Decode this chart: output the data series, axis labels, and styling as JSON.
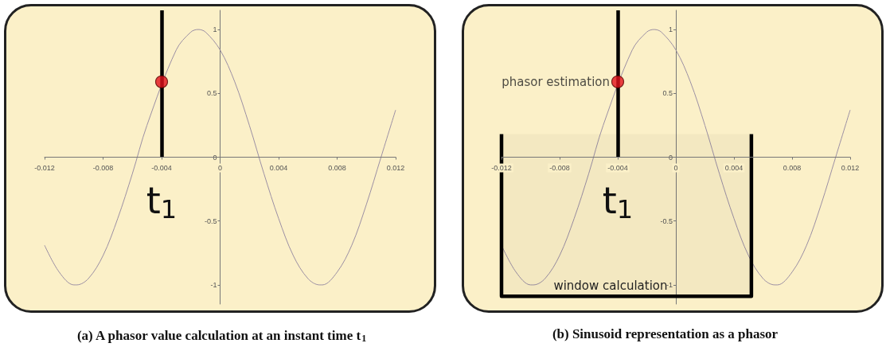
{
  "chart_data": [
    {
      "type": "line",
      "title": "(a) A phasor value calculation at an instant time t$_{1}$",
      "series": [
        {
          "color": "#9b8fa3",
          "x": [
            -0.012,
            -0.011,
            -0.01,
            -0.0098,
            -0.009,
            -0.008,
            -0.007,
            -0.006,
            -0.005,
            -0.003,
            -0.002,
            -0.0015,
            -0.001,
            0,
            0.001,
            0.002,
            0.003,
            0.004,
            0.005,
            0.006,
            0.0068,
            0.007,
            0.008,
            0.009,
            0.01,
            0.011,
            0.012
          ],
          "values": [
            -0.69,
            -0.9,
            -1,
            -1,
            -0.95,
            -0.77,
            -0.48,
            -0.13,
            0.25,
            0.84,
            0.98,
            1,
            0.98,
            0.84,
            0.59,
            0.25,
            -0.13,
            -0.48,
            -0.77,
            -0.95,
            -1,
            -1,
            -0.9,
            -0.69,
            -0.37,
            0,
            0.37
          ]
        },
        {
          "type": "scatter",
          "color": "#e3101a",
          "x": [
            -0.004
          ],
          "values": [
            0.59
          ]
        }
      ],
      "xlim": [
        -0.012,
        0.012
      ],
      "xticks": [
        -0.012,
        -0.008,
        -0.004,
        0,
        0.004,
        0.008,
        0.012
      ],
      "ylim": [
        -1.15,
        1.15
      ],
      "yticks": [
        -1,
        -0.5,
        0,
        0.5,
        1
      ],
      "ref_lines": [
        {
          "axis": "x",
          "value": -0.004,
          "label": "t$_{1}$",
          "color": "#000000"
        }
      ]
    },
    {
      "type": "line",
      "title": "(b) Sinusoid representation as a phasor",
      "series": [
        {
          "color": "#9b8fa3",
          "x": [
            -0.012,
            -0.011,
            -0.01,
            -0.0098,
            -0.009,
            -0.008,
            -0.007,
            -0.006,
            -0.005,
            -0.003,
            -0.002,
            -0.0015,
            -0.001,
            0,
            0.001,
            0.002,
            0.003,
            0.004,
            0.005,
            0.006,
            0.0068,
            0.007,
            0.008,
            0.009,
            0.01,
            0.011,
            0.012
          ],
          "values": [
            -0.69,
            -0.9,
            -1,
            -1,
            -0.95,
            -0.77,
            -0.48,
            -0.13,
            0.25,
            0.84,
            0.98,
            1,
            0.98,
            0.84,
            0.59,
            0.25,
            -0.13,
            -0.48,
            -0.77,
            -0.95,
            -1,
            -1,
            -0.9,
            -0.69,
            -0.37,
            0,
            0.37
          ]
        },
        {
          "type": "scatter",
          "color": "#e3101a",
          "x": [
            -0.004
          ],
          "values": [
            0.59
          ]
        }
      ],
      "xlim": [
        -0.012,
        0.012
      ],
      "xticks": [
        -0.012,
        -0.008,
        -0.004,
        0,
        0.004,
        0.008,
        0.012
      ],
      "ylim": [
        -1.15,
        1.15
      ],
      "yticks": [
        -1,
        -0.5,
        0,
        0.5,
        1
      ],
      "ref_lines": [
        {
          "axis": "x",
          "value": -0.004,
          "label": "t$_{1}$",
          "color": "#000000"
        }
      ],
      "bands": [
        {
          "axis": "x",
          "from": -0.012,
          "to": 0.0052,
          "label": "window calculation",
          "color": "#000000"
        }
      ],
      "annotations": [
        {
          "text": "phasor estimation",
          "x": -0.004,
          "y": 0.59
        }
      ]
    }
  ]
}
